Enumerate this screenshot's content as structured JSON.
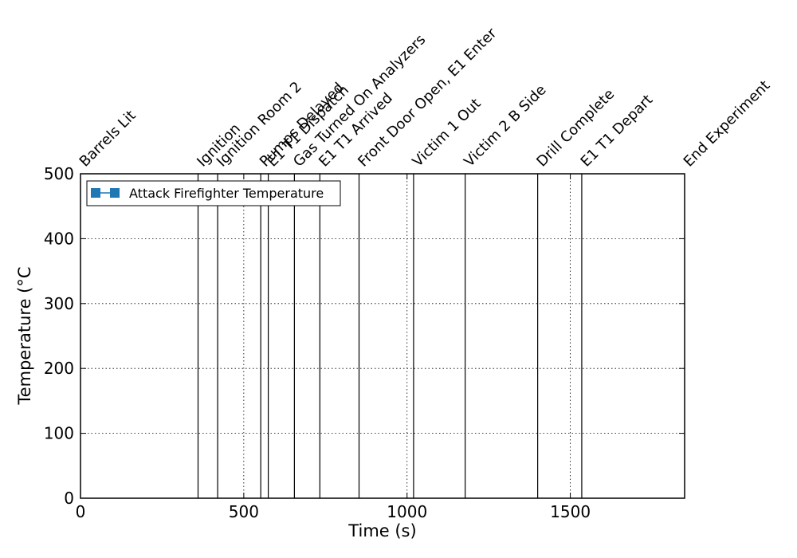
{
  "chart_data": {
    "type": "line",
    "title": "",
    "xlabel": "Time (s)",
    "ylabel": "Temperature (°C",
    "xlim": [
      0,
      1850
    ],
    "ylim": [
      0,
      500
    ],
    "xticks": [
      0,
      500,
      1000,
      1500
    ],
    "yticks": [
      0,
      100,
      200,
      300,
      400,
      500
    ],
    "grid": true,
    "legend_position": "upper-left",
    "series": [
      {
        "name": "Attack Firefighter Temperature",
        "color": "#1f77b4",
        "marker": "square",
        "x": [],
        "y": []
      }
    ],
    "events": [
      {
        "label": "Barrels Lit",
        "time": 0
      },
      {
        "label": "Ignition",
        "time": 360
      },
      {
        "label": "Ignition Room 2",
        "time": 420
      },
      {
        "label": "Pumps Delayed",
        "time": 552
      },
      {
        "label": "E1 T1 Dispatch",
        "time": 575
      },
      {
        "label": "Gas Turned On Analyzers",
        "time": 655
      },
      {
        "label": "E1 T1 Arrived",
        "time": 733
      },
      {
        "label": "Front Door Open, E1 Enter",
        "time": 853
      },
      {
        "label": "Victim 1 Out",
        "time": 1020
      },
      {
        "label": "Victim 2 B Side",
        "time": 1178
      },
      {
        "label": "Drill Complete",
        "time": 1400
      },
      {
        "label": "E1 T1 Depart",
        "time": 1535
      },
      {
        "label": "End Experiment",
        "time": 1850
      }
    ]
  }
}
